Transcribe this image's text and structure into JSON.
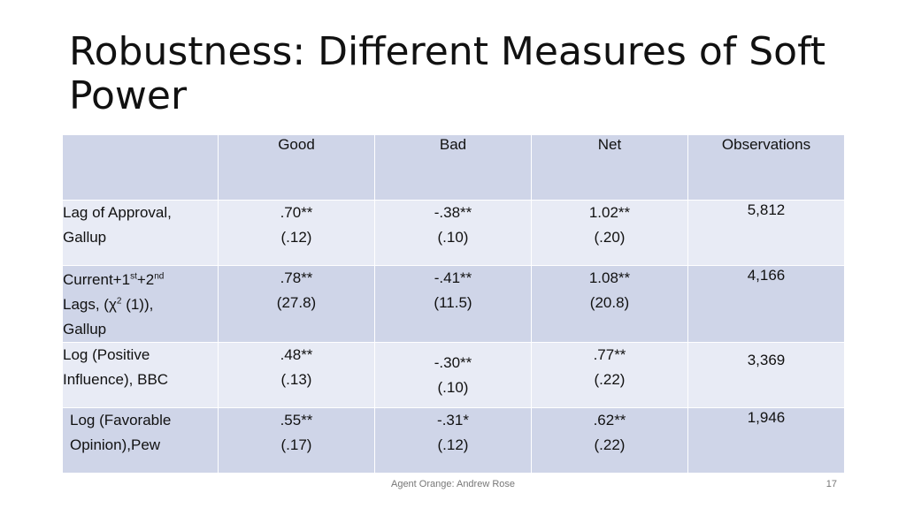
{
  "slide": {
    "title": "Robustness: Different Measures of Soft Power",
    "footer": "Agent Orange: Andrew Rose",
    "page_number": "17"
  },
  "table": {
    "headers": [
      "",
      "Good",
      "Bad",
      "Net",
      "Observations"
    ],
    "rows": [
      {
        "label": "Lag of Approval, Gallup",
        "good": {
          "coef": ".70**",
          "se": "(.12)"
        },
        "bad": {
          "coef": "-.38**",
          "se": "(.10)"
        },
        "net": {
          "coef": "1.02**",
          "se": "(.20)"
        },
        "obs": "5,812"
      },
      {
        "label_parts": {
          "a": "Current+1",
          "b": "st",
          "c": "+2",
          "d": "nd",
          "e": "Lags, (χ",
          "f": "2",
          "g": " (1)),",
          "h": "Gallup"
        },
        "good": {
          "coef": ".78**",
          "se": "(27.8)"
        },
        "bad": {
          "coef": "-.41**",
          "se": "(11.5)"
        },
        "net": {
          "coef": "1.08**",
          "se": "(20.8)"
        },
        "obs": "4,166"
      },
      {
        "label": "Log (Positive Influence), BBC",
        "good": {
          "coef": ".48**",
          "se": "(.13)"
        },
        "bad": {
          "coef": "-.30**",
          "se": "(.10)"
        },
        "net": {
          "coef": ".77**",
          "se": "(.22)"
        },
        "obs": "3,369"
      },
      {
        "label": "Log (Favorable Opinion),Pew",
        "good": {
          "coef": ".55**",
          "se": "(.17)"
        },
        "bad": {
          "coef": "-.31*",
          "se": "(.12)"
        },
        "net": {
          "coef": ".62**",
          "se": "(.22)"
        },
        "obs": "1,946"
      }
    ]
  },
  "colors": {
    "header_row": "#cfd5e8",
    "alt_row": "#e8ebf5"
  }
}
